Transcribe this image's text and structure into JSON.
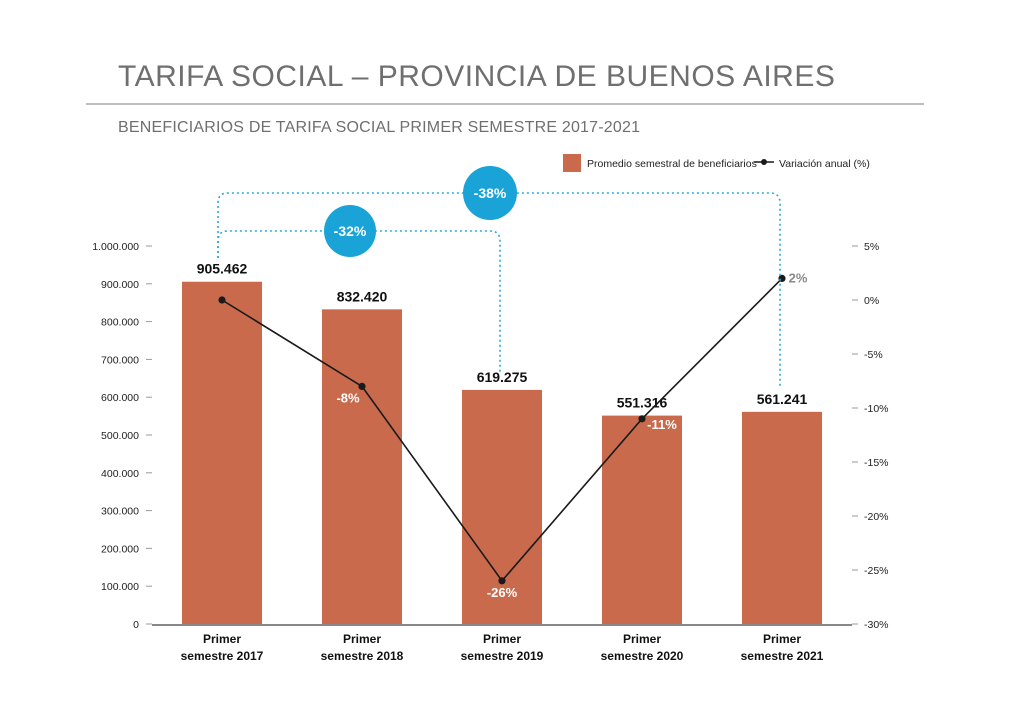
{
  "title": "TARIFA SOCIAL – PROVINCIA DE BUENOS AIRES",
  "subtitle": "BENEFICIARIOS DE TARIFA SOCIAL PRIMER SEMESTRE 2017-2021",
  "colors": {
    "bar": "#c96a4d",
    "line": "#1a1a1a",
    "bubble": "#1aa3d6",
    "bracket": "#2ba9d9",
    "axis": "#888888",
    "text": "#222222"
  },
  "chart_data": {
    "type": "bar",
    "categories": [
      [
        "Primer",
        "semestre 2017"
      ],
      [
        "Primer",
        "semestre 2018"
      ],
      [
        "Primer",
        "semestre 2019"
      ],
      [
        "Primer",
        "semestre 2020"
      ],
      [
        "Primer",
        "semestre 2021"
      ]
    ],
    "series": [
      {
        "name": "Promedio semestral de beneficiarios",
        "type": "bar",
        "axis": "left",
        "values": [
          905462,
          832420,
          619275,
          551316,
          561241
        ],
        "labels": [
          "905.462",
          "832.420",
          "619.275",
          "551.316",
          "561.241"
        ]
      },
      {
        "name": "Variación anual (%)",
        "type": "line",
        "axis": "right",
        "values": [
          0,
          -8,
          -26,
          -11,
          2
        ],
        "labels": [
          "",
          "-8%",
          "-26%",
          "-11%",
          "2%"
        ]
      }
    ],
    "y_left": {
      "range": [
        0,
        1000000
      ],
      "ticks": [
        0,
        100000,
        200000,
        300000,
        400000,
        500000,
        600000,
        700000,
        800000,
        900000,
        1000000
      ],
      "tick_labels": [
        "0",
        "100.000",
        "200.000",
        "300.000",
        "400.000",
        "500.000",
        "600.000",
        "700.000",
        "800.000",
        "900.000",
        "1.000.000"
      ]
    },
    "y_right": {
      "range": [
        -30,
        5
      ],
      "ticks": [
        5,
        0,
        -5,
        -10,
        -15,
        -20,
        -25,
        -30
      ],
      "tick_labels": [
        "5%",
        "0%",
        "-5%",
        "-10%",
        "-15%",
        "-20%",
        "-25%",
        "-30%"
      ]
    },
    "annotations": [
      {
        "label": "-32%",
        "from": 0,
        "to": 2
      },
      {
        "label": "-38%",
        "from": 0,
        "to": 4
      }
    ],
    "legend": {
      "position": "top-right"
    },
    "grid": false
  }
}
